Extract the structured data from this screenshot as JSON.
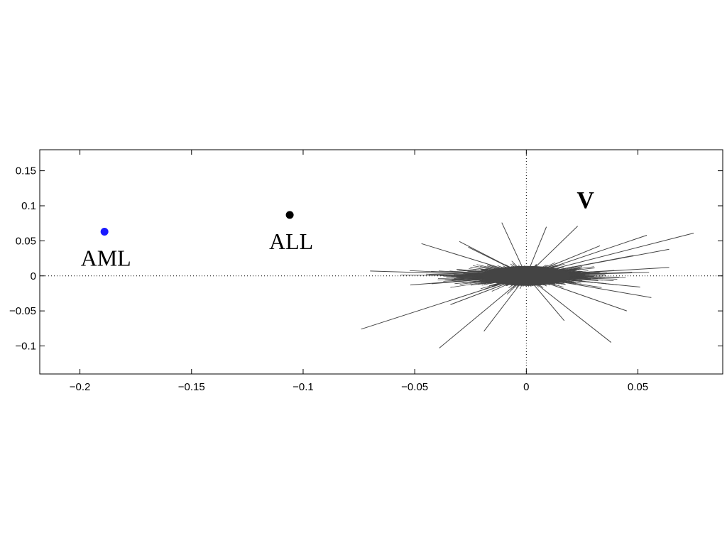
{
  "chart_data": {
    "type": "scatter",
    "title": "",
    "xlabel": "",
    "ylabel": "",
    "xlim": [
      -0.218,
      0.088
    ],
    "ylim": [
      -0.14,
      0.18
    ],
    "x_ticks": [
      -0.2,
      -0.15,
      -0.1,
      -0.05,
      0,
      0.05
    ],
    "x_tick_labels": [
      "−0.2",
      "−0.15",
      "−0.1",
      "−0.05",
      "0",
      "0.05"
    ],
    "y_ticks": [
      0.15,
      0.1,
      0.05,
      0,
      -0.05,
      -0.1
    ],
    "y_tick_labels": [
      "0.15",
      "0.1",
      "0.05",
      "0",
      "−0.05",
      "−0.1"
    ],
    "grid": false,
    "reference_lines": {
      "x": 0,
      "y": 0,
      "style": "dotted"
    },
    "points": [
      {
        "name": "AML",
        "x": -0.189,
        "y": 0.063,
        "color": "#1a1aff"
      },
      {
        "name": "ALL",
        "x": -0.106,
        "y": 0.087,
        "color": "#000000"
      }
    ],
    "vector_label": "V",
    "vector_label_position": {
      "x": 0.0265,
      "y": 0.097
    },
    "vector_color": "#444444",
    "vectors_highlight": [
      [
        0.075,
        0.061
      ],
      [
        0.064,
        0.038
      ],
      [
        0.054,
        0.058
      ],
      [
        0.038,
        -0.095
      ],
      [
        -0.074,
        -0.076
      ],
      [
        -0.039,
        -0.103
      ],
      [
        -0.03,
        0.049
      ],
      [
        0.009,
        0.07
      ],
      [
        -0.011,
        0.076
      ],
      [
        -0.07,
        0.007
      ],
      [
        0.055,
        0.005
      ],
      [
        0.064,
        0.012
      ],
      [
        0.056,
        -0.031
      ],
      [
        0.045,
        -0.05
      ],
      [
        -0.047,
        0.046
      ],
      [
        -0.052,
        -0.013
      ],
      [
        0.048,
        0.029
      ],
      [
        -0.026,
        0.041
      ],
      [
        0.023,
        0.071
      ],
      [
        -0.034,
        -0.041
      ],
      [
        0.017,
        -0.064
      ],
      [
        -0.019,
        -0.079
      ],
      [
        0.033,
        0.043
      ],
      [
        0.051,
        -0.016
      ]
    ]
  }
}
